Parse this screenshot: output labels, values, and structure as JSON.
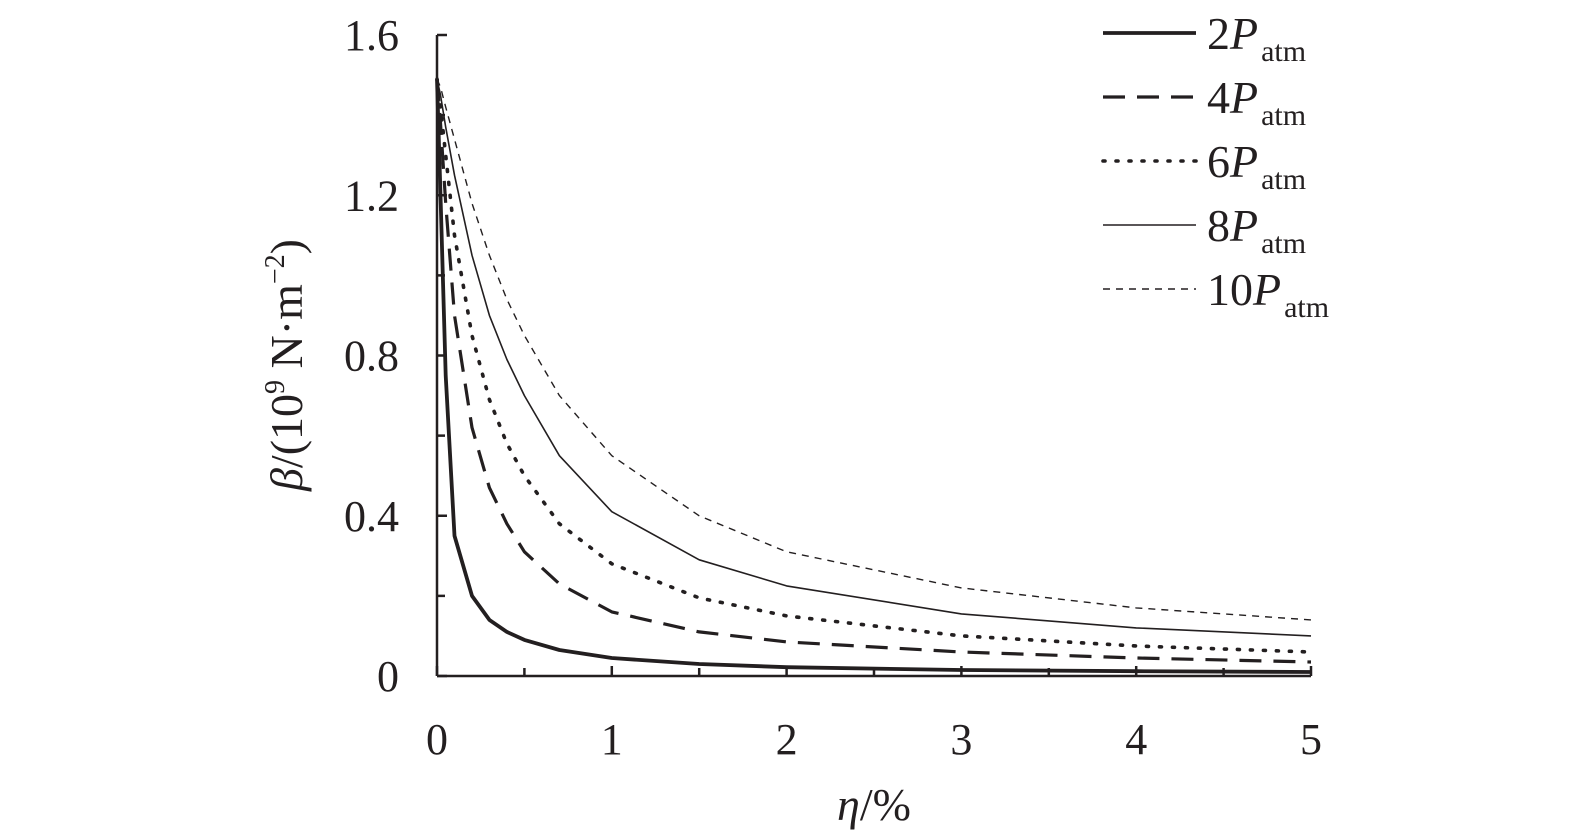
{
  "chart_data": {
    "type": "line",
    "title": "",
    "xlabel": {
      "symbol": "η",
      "unit": "/%"
    },
    "ylabel": {
      "symbol": "β",
      "unit_prefix": "/(10",
      "unit_exp": "9",
      "unit_mid": " N·m",
      "unit_exp2": "−2",
      "unit_suffix": ")"
    },
    "xlim": [
      0,
      5
    ],
    "ylim": [
      0,
      1.6
    ],
    "x_ticks": [
      0,
      1,
      2,
      3,
      4,
      5
    ],
    "x_tick_labels": [
      "0",
      "1",
      "2",
      "3",
      "4",
      "5"
    ],
    "y_ticks": [
      0,
      0.4,
      0.8,
      1.2,
      1.6
    ],
    "y_tick_labels": [
      "0",
      "0.4",
      "0.8",
      "1.2",
      "1.6"
    ],
    "grid": false,
    "legend_position": "top-right",
    "series": [
      {
        "name": "2",
        "name_italic": "P",
        "name_sub": "atm",
        "style": "solid-thick",
        "x": [
          0,
          0.02,
          0.05,
          0.1,
          0.2,
          0.3,
          0.4,
          0.5,
          0.7,
          1,
          1.5,
          2,
          3,
          4,
          5
        ],
        "y": [
          1.49,
          1.2,
          0.75,
          0.35,
          0.2,
          0.14,
          0.11,
          0.09,
          0.065,
          0.045,
          0.03,
          0.022,
          0.015,
          0.012,
          0.01
        ]
      },
      {
        "name": "4",
        "name_italic": "P",
        "name_sub": "atm",
        "style": "dashed-thick",
        "x": [
          0,
          0.02,
          0.05,
          0.1,
          0.2,
          0.3,
          0.4,
          0.5,
          0.7,
          1,
          1.5,
          2,
          3,
          4,
          5
        ],
        "y": [
          1.49,
          1.38,
          1.18,
          0.9,
          0.62,
          0.47,
          0.38,
          0.31,
          0.23,
          0.16,
          0.11,
          0.085,
          0.06,
          0.045,
          0.035
        ]
      },
      {
        "name": "6",
        "name_italic": "P",
        "name_sub": "atm",
        "style": "dotted",
        "x": [
          0,
          0.02,
          0.05,
          0.1,
          0.2,
          0.3,
          0.4,
          0.5,
          0.7,
          1,
          1.5,
          2,
          3,
          4,
          5
        ],
        "y": [
          1.49,
          1.42,
          1.3,
          1.1,
          0.85,
          0.69,
          0.58,
          0.5,
          0.38,
          0.28,
          0.195,
          0.15,
          0.1,
          0.075,
          0.06
        ]
      },
      {
        "name": "8",
        "name_italic": "P",
        "name_sub": "atm",
        "style": "solid-thin",
        "x": [
          0,
          0.02,
          0.05,
          0.1,
          0.2,
          0.3,
          0.4,
          0.5,
          0.7,
          1,
          1.5,
          2,
          3,
          4,
          5
        ],
        "y": [
          1.49,
          1.45,
          1.37,
          1.25,
          1.05,
          0.9,
          0.79,
          0.7,
          0.55,
          0.41,
          0.29,
          0.225,
          0.155,
          0.12,
          0.1
        ]
      },
      {
        "name": "10",
        "name_italic": "P",
        "name_sub": "atm",
        "style": "dashed-thin",
        "x": [
          0,
          0.02,
          0.05,
          0.1,
          0.2,
          0.3,
          0.4,
          0.5,
          0.7,
          1,
          1.5,
          2,
          3,
          4,
          5
        ],
        "y": [
          1.49,
          1.47,
          1.42,
          1.34,
          1.18,
          1.05,
          0.94,
          0.85,
          0.7,
          0.55,
          0.4,
          0.31,
          0.22,
          0.17,
          0.14
        ]
      }
    ]
  }
}
